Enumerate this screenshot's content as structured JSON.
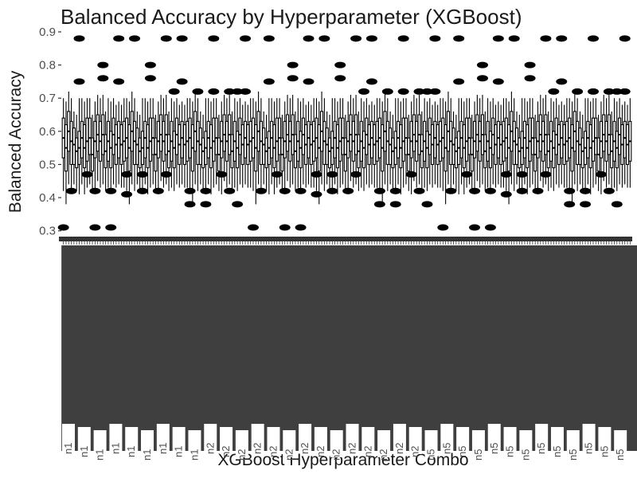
{
  "chart_data": {
    "type": "box",
    "title": "Balanced Accuracy by Hyperparameter (XGBoost)",
    "xlabel": "XGBoost Hyperparameter Combo",
    "ylabel": "Balanced Accuracy",
    "ylim": [
      0.28,
      0.9
    ],
    "yticks": [
      0.3,
      0.4,
      0.5,
      0.6,
      0.7,
      0.8,
      0.9
    ],
    "grid": false,
    "category_count": 216,
    "visible_tick_labels": [
      "n1",
      "n1",
      "n1",
      "n1",
      "n1",
      "n1",
      "n1",
      "n1",
      "n1",
      "n2",
      "n2",
      "n2",
      "n2",
      "n2",
      "n2",
      "n2",
      "n2",
      "n2",
      "n2",
      "n2",
      "n2",
      "n2",
      "n2",
      "n5",
      "n5",
      "n5",
      "n5",
      "n5",
      "n5",
      "n5",
      "n5",
      "n5",
      "n5",
      "n5",
      "n5",
      "n5"
    ],
    "series": [
      {
        "values": [
          {
            "median": 0.58,
            "q1": 0.52,
            "q3": 0.64,
            "low": 0.42,
            "high": 0.7,
            "outliers": [
              0.31
            ]
          },
          {
            "median": 0.55,
            "q1": 0.48,
            "q3": 0.62,
            "low": 0.38,
            "high": 0.69,
            "outliers": [
              0.42
            ]
          },
          {
            "median": 0.6,
            "q1": 0.54,
            "q3": 0.66,
            "low": 0.44,
            "high": 0.72,
            "outliers": [
              0.75,
              0.88
            ]
          },
          {
            "median": 0.57,
            "q1": 0.5,
            "q3": 0.63,
            "low": 0.42,
            "high": 0.7,
            "outliers": [
              0.47
            ]
          },
          {
            "median": 0.56,
            "q1": 0.5,
            "q3": 0.61,
            "low": 0.44,
            "high": 0.66,
            "outliers": [
              0.42,
              0.31
            ]
          },
          {
            "median": 0.54,
            "q1": 0.49,
            "q3": 0.58,
            "low": 0.42,
            "high": 0.65,
            "outliers": [
              0.76,
              0.8
            ]
          },
          {
            "median": 0.55,
            "q1": 0.5,
            "q3": 0.6,
            "low": 0.41,
            "high": 0.7,
            "outliers": [
              0.31,
              0.42
            ]
          },
          {
            "median": 0.58,
            "q1": 0.52,
            "q3": 0.63,
            "low": 0.44,
            "high": 0.7,
            "outliers": [
              0.75,
              0.88
            ]
          },
          {
            "median": 0.55,
            "q1": 0.49,
            "q3": 0.62,
            "low": 0.41,
            "high": 0.69,
            "outliers": [
              0.47,
              0.41
            ]
          },
          {
            "median": 0.57,
            "q1": 0.51,
            "q3": 0.64,
            "low": 0.43,
            "high": 0.7,
            "outliers": [
              0.88
            ]
          },
          {
            "median": 0.58,
            "q1": 0.53,
            "q3": 0.64,
            "low": 0.44,
            "high": 0.7,
            "outliers": [
              0.47,
              0.42
            ]
          },
          {
            "median": 0.53,
            "q1": 0.48,
            "q3": 0.58,
            "low": 0.42,
            "high": 0.65,
            "outliers": [
              0.76,
              0.8
            ]
          },
          {
            "median": 0.57,
            "q1": 0.52,
            "q3": 0.63,
            "low": 0.41,
            "high": 0.69,
            "outliers": [
              0.42
            ]
          },
          {
            "median": 0.59,
            "q1": 0.54,
            "q3": 0.65,
            "low": 0.45,
            "high": 0.71,
            "outliers": [
              0.47,
              0.88
            ]
          },
          {
            "median": 0.57,
            "q1": 0.51,
            "q3": 0.63,
            "low": 0.43,
            "high": 0.7,
            "outliers": [
              0.72
            ]
          },
          {
            "median": 0.59,
            "q1": 0.53,
            "q3": 0.65,
            "low": 0.44,
            "high": 0.71,
            "outliers": [
              0.75,
              0.88
            ]
          },
          {
            "median": 0.54,
            "q1": 0.49,
            "q3": 0.59,
            "low": 0.42,
            "high": 0.66,
            "outliers": [
              0.38,
              0.42
            ]
          },
          {
            "median": 0.57,
            "q1": 0.51,
            "q3": 0.63,
            "low": 0.43,
            "high": 0.7,
            "outliers": [
              0.72
            ]
          },
          {
            "median": 0.55,
            "q1": 0.49,
            "q3": 0.6,
            "low": 0.42,
            "high": 0.69,
            "outliers": [
              0.42,
              0.38
            ]
          },
          {
            "median": 0.59,
            "q1": 0.53,
            "q3": 0.64,
            "low": 0.44,
            "high": 0.7,
            "outliers": [
              0.72,
              0.88
            ]
          },
          {
            "median": 0.56,
            "q1": 0.5,
            "q3": 0.62,
            "low": 0.43,
            "high": 0.68,
            "outliers": [
              0.47
            ]
          },
          {
            "median": 0.58,
            "q1": 0.52,
            "q3": 0.63,
            "low": 0.44,
            "high": 0.69,
            "outliers": [
              0.42,
              0.72
            ]
          },
          {
            "median": 0.56,
            "q1": 0.5,
            "q3": 0.62,
            "low": 0.43,
            "high": 0.68,
            "outliers": [
              0.38,
              0.72
            ]
          },
          {
            "median": 0.57,
            "q1": 0.51,
            "q3": 0.63,
            "low": 0.43,
            "high": 0.7,
            "outliers": [
              0.72,
              0.88
            ]
          }
        ]
      }
    ]
  }
}
